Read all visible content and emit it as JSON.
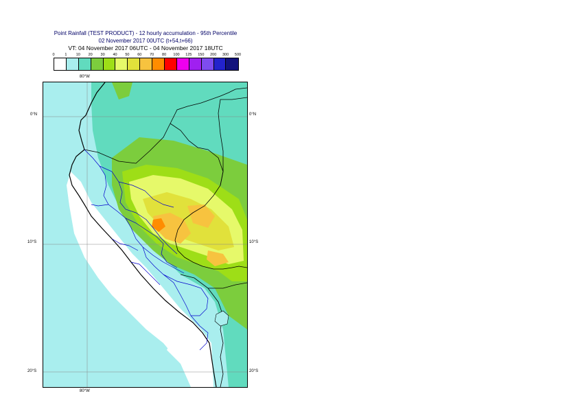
{
  "header": {
    "title_line1": "Point Rainfall (TEST PRODUCT) - 12 hourly accumulation - 95th Percentile",
    "title_line2": "02 November 2017 00UTC (t+54,t+66)",
    "title_line3": "VT: 04 November 2017 06UTC - 04 November 2017 18UTC"
  },
  "legend": {
    "ticks": [
      "0",
      "1",
      "10",
      "20",
      "30",
      "40",
      "50",
      "60",
      "70",
      "80",
      "100",
      "125",
      "150",
      "200",
      "300",
      "500"
    ],
    "colors": [
      "#ffffff",
      "#a9eeee",
      "#61dbbe",
      "#7ccd3d",
      "#9ede17",
      "#e6f96a",
      "#e1e13b",
      "#f7c33f",
      "#ff8c00",
      "#ff0000",
      "#ee00ee",
      "#a020f0",
      "#7e4cf0",
      "#2323cc",
      "#12127d"
    ]
  },
  "map": {
    "lat_labels": [
      "0°N",
      "10°S",
      "20°S"
    ],
    "lon_labels": [
      "80°W",
      "80°W"
    ],
    "region": "Peru",
    "colors": {
      "ocean_light": "#a9eeee",
      "medium": "#61dbbe",
      "green": "#7ccd3d",
      "lime": "#9ede17",
      "yellow_light": "#e6f96a",
      "yellow": "#e1e13b",
      "orange_light": "#f7c33f",
      "orange": "#ff8c00",
      "dry": "#ffffff",
      "border_country": "#000000",
      "border_region": "#0000cc"
    }
  }
}
